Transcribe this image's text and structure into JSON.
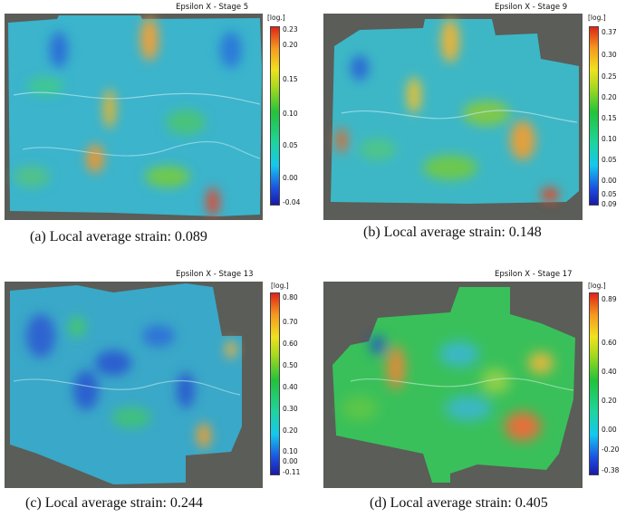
{
  "panels": [
    {
      "title": "Epsilon X - Stage 5",
      "unit": "[log.]",
      "ticks": [
        "0.23",
        "0.20",
        "0.15",
        "0.10",
        "0.05",
        "0.00",
        "-0.04"
      ],
      "caption": "(a) Local average strain: 0.089"
    },
    {
      "title": "Epsilon X - Stage 9",
      "unit": "[log.]",
      "ticks": [
        "0.37",
        "0.30",
        "0.25",
        "0.20",
        "0.15",
        "0.10",
        "0.05",
        "0.00",
        "0.05",
        "0.09"
      ],
      "caption": "(b) Local average strain: 0.148"
    },
    {
      "title": "Epsilon X - Stage 13",
      "unit": "[log.]",
      "ticks": [
        "0.80",
        "0.70",
        "0.60",
        "0.50",
        "0.40",
        "0.30",
        "0.20",
        "0.10",
        "0.00",
        "-0.11"
      ],
      "caption": "(c) Local average strain: 0.244"
    },
    {
      "title": "Epsilon X - Stage 17",
      "unit": "[log.]",
      "ticks": [
        "0.89",
        "0.60",
        "0.40",
        "0.20",
        "0.00",
        "-0.20",
        "-0.38"
      ],
      "caption": "(d) Local average strain: 0.405"
    }
  ]
}
